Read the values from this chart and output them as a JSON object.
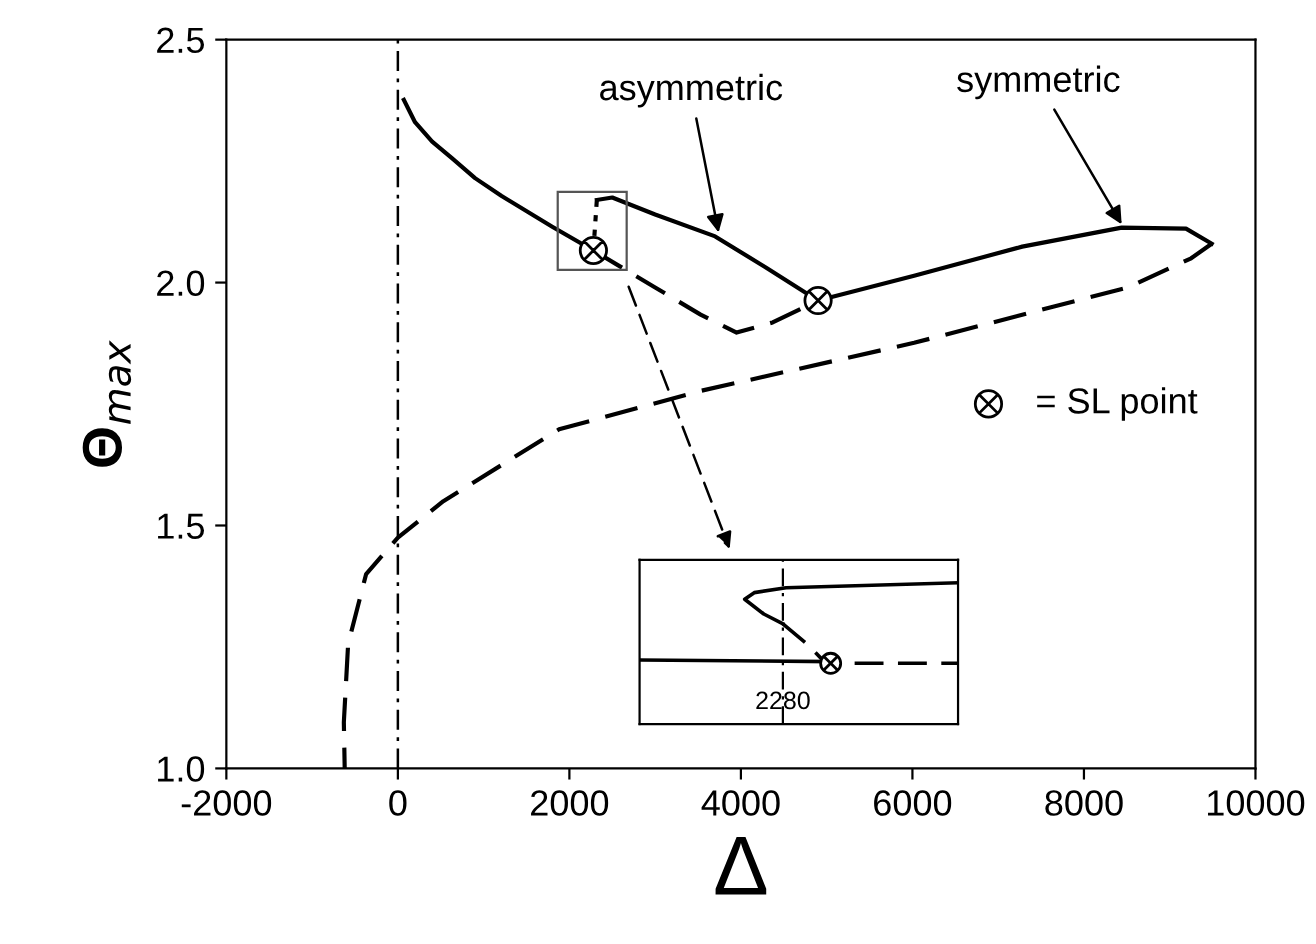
{
  "chart_data": [
    {
      "type": "line",
      "xlabel": "Δ",
      "ylabel": "Θ$_{max}$",
      "xlim": [
        -2000,
        10000
      ],
      "ylim": [
        1.0,
        2.5
      ],
      "xticks": [
        -2000,
        0,
        2000,
        4000,
        6000,
        8000,
        10000
      ],
      "yticks": [
        {
          "value": 1.0,
          "label": "1.0"
        },
        1.5,
        {
          "value": 2.0,
          "label": "2.0"
        },
        2.5
      ],
      "grid": false,
      "legend": "right",
      "marker": "none",
      "ref_lines": [
        {
          "axis": "x",
          "value": 0,
          "line_style": "dashdot",
          "color": "#000000"
        }
      ],
      "annotations": [
        {
          "text": "asymmetric",
          "x": 3740,
          "y": 2.103
        },
        {
          "text": "symmetric",
          "x": 8440,
          "y": 2.12
        },
        "2280"
      ],
      "series": [
        {
          "color": "#000000",
          "line_style": "solid",
          "x": [
            70,
            200,
            400,
            630,
            900,
            1210,
            1800,
            2280
          ],
          "values": [
            2.376,
            2.33,
            2.29,
            2.256,
            2.215,
            2.178,
            2.115,
            2.066
          ]
        },
        {
          "color": "#000000",
          "line_style": "dotted",
          "x": [
            2280,
            2320
          ],
          "values": [
            2.066,
            2.17
          ]
        },
        {
          "color": "#000000",
          "line_style": "solid",
          "x": [
            2320,
            2500,
            3000,
            3700,
            4300,
            4900
          ],
          "values": [
            2.17,
            2.175,
            2.14,
            2.095,
            2.03,
            1.963
          ]
        },
        {
          "color": "#000000",
          "line_style": "dashed",
          "x": [
            2280,
            3000,
            3530,
            3950,
            4370,
            4900
          ],
          "values": [
            2.066,
            1.99,
            1.934,
            1.897,
            1.918,
            1.963
          ]
        },
        {
          "color": "#000000",
          "line_style": "solid",
          "x": [
            4900,
            6020,
            7280,
            8440,
            9190,
            9490
          ],
          "values": [
            1.963,
            2.014,
            2.074,
            2.113,
            2.111,
            2.08
          ]
        },
        {
          "color": "#000000",
          "line_style": "dashed",
          "x": [
            9490,
            9250,
            8510,
            6020,
            3530,
            1880,
            530,
            0,
            -370,
            -580,
            -630,
            -620
          ],
          "values": [
            2.08,
            2.05,
            1.99,
            1.876,
            1.777,
            1.698,
            1.55,
            1.475,
            1.4,
            1.256,
            1.095,
            1.0
          ]
        },
        {
          "type": "scatter",
          "name": "= SL point",
          "color": "#000000",
          "marker": "cross",
          "x": [
            2280,
            4900
          ],
          "values": [
            2.066,
            1.963
          ]
        }
      ]
    }
  ]
}
